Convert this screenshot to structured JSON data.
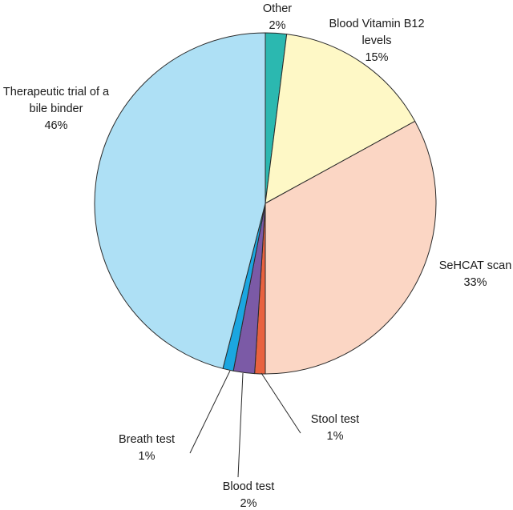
{
  "chart_data": {
    "type": "pie",
    "title": "",
    "slices": [
      {
        "label": [
          "Other"
        ],
        "pct_label": "2%",
        "value": 2,
        "color": "#2bb8b0"
      },
      {
        "label": [
          "Blood Vitamin B12",
          "levels"
        ],
        "pct_label": "15%",
        "value": 15,
        "color": "#fef8c6"
      },
      {
        "label": [
          "SeHCAT scan"
        ],
        "pct_label": "33%",
        "value": 33,
        "color": "#fbd6c4"
      },
      {
        "label": [
          "Stool test"
        ],
        "pct_label": "1%",
        "value": 1,
        "color": "#e8623f"
      },
      {
        "label": [
          "Blood test"
        ],
        "pct_label": "2%",
        "value": 2,
        "color": "#7b5aa6"
      },
      {
        "label": [
          "Breath test"
        ],
        "pct_label": "1%",
        "value": 1,
        "color": "#1ba6e0"
      },
      {
        "label": [
          "Therapeutic trial of a",
          "bile binder"
        ],
        "pct_label": "46%",
        "value": 46,
        "color": "#aee0f5"
      }
    ],
    "legend": "none",
    "label_style": "outside labels with leader lines for small slices"
  }
}
